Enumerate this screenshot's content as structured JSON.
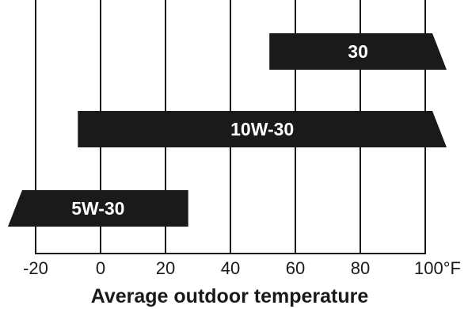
{
  "chart_data": {
    "type": "bar",
    "orientation": "horizontal",
    "title": "",
    "xlabel": "Average outdoor temperature",
    "x_unit": "°F",
    "xlim": [
      -20,
      100
    ],
    "ticks": [
      -20,
      0,
      20,
      40,
      60,
      80,
      100
    ],
    "tick_labels": [
      "-20",
      "0",
      "20",
      "40",
      "60",
      "80",
      "100°F"
    ],
    "grid": true,
    "bar_color": "#1a1a1a",
    "label_color": "#ffffff",
    "series": [
      {
        "name": "30",
        "start": 52,
        "end": 100,
        "end_open": true
      },
      {
        "name": "10W-30",
        "start": -7,
        "end": 100,
        "end_open": true
      },
      {
        "name": "5W-30",
        "start": -20,
        "end": 27,
        "start_open": true
      }
    ]
  }
}
